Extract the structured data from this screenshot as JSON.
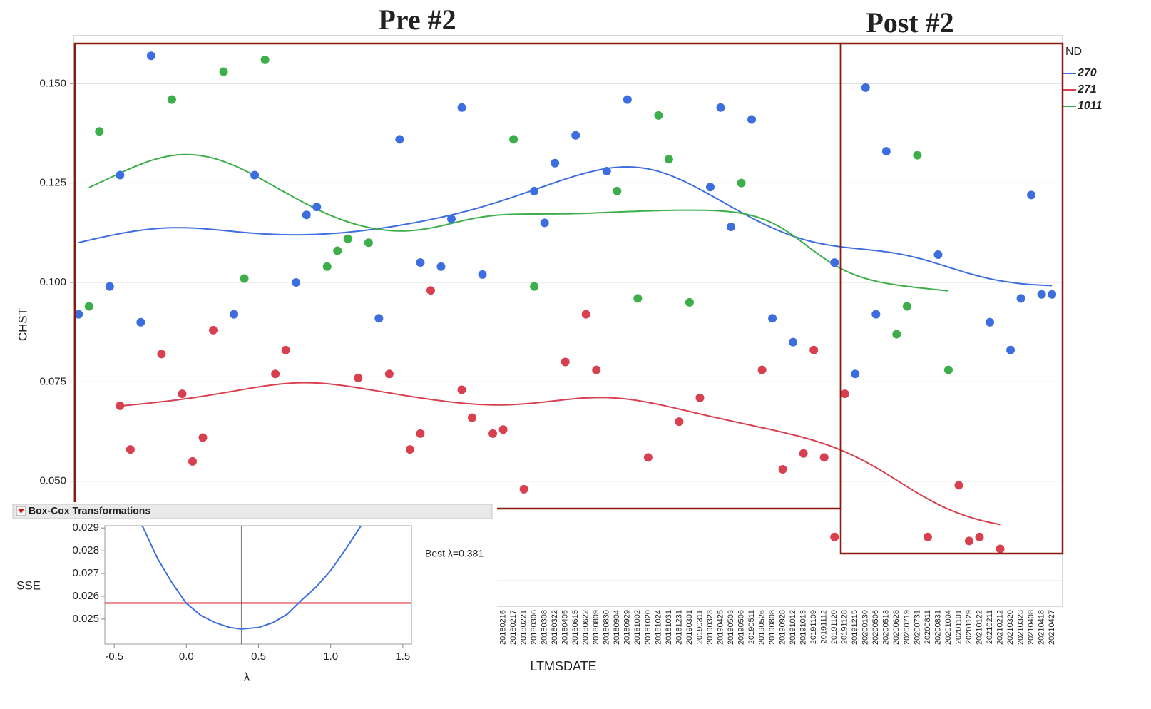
{
  "chart_data": [
    {
      "type": "scatter",
      "x_label": "LTMSDATE",
      "y_label": "CHST",
      "legend_title": "ND",
      "legend": "right",
      "grid": true,
      "smoother": true,
      "annotations": [
        "Pre #2",
        "Post #2"
      ],
      "categories": [
        null,
        null,
        null,
        null,
        null,
        null,
        null,
        null,
        null,
        null,
        null,
        null,
        null,
        null,
        null,
        null,
        null,
        null,
        null,
        null,
        null,
        null,
        null,
        null,
        null,
        null,
        null,
        null,
        null,
        null,
        null,
        null,
        null,
        null,
        null,
        null,
        null,
        null,
        null,
        null,
        null,
        "20180216",
        "20180217",
        "20180221",
        "20180306",
        "20180308",
        "20180322",
        "20180405",
        "20180615",
        "20180622",
        "20180809",
        "20180830",
        "20180904",
        "20180929",
        "20181002",
        "20181020",
        "20181024",
        "20181031",
        "20181231",
        "20190301",
        "20190311",
        "20190323",
        "20190425",
        "20190503",
        "20190506",
        "20190511",
        "20190526",
        "20190808",
        "20190928",
        "20191012",
        "20191013",
        "20191109",
        "20191112",
        "20191120",
        "20191128",
        "20191215",
        "20200130",
        "20200506",
        "20200513",
        "20200628",
        "20200719",
        "20200731",
        "20200811",
        "20200831",
        "20201004",
        "20201101",
        "20201129",
        "20210122",
        "20210211",
        "20210212",
        "20210320",
        "20210323",
        "20210408",
        "20210418",
        "20210427"
      ],
      "series": [
        {
          "name": "270",
          "color": "#3d6ee0",
          "values": [
            0.092,
            null,
            null,
            0.099,
            0.127,
            null,
            0.09,
            0.157,
            null,
            null,
            null,
            null,
            null,
            null,
            null,
            0.092,
            null,
            0.127,
            null,
            null,
            null,
            0.1,
            0.117,
            0.119,
            null,
            null,
            null,
            null,
            null,
            0.091,
            null,
            0.136,
            null,
            0.105,
            null,
            0.104,
            0.116,
            0.144,
            null,
            0.102,
            null,
            null,
            null,
            null,
            0.123,
            0.115,
            0.13,
            null,
            0.137,
            null,
            null,
            0.128,
            null,
            0.146,
            null,
            null,
            null,
            null,
            null,
            null,
            null,
            0.124,
            0.144,
            0.114,
            null,
            0.141,
            null,
            0.091,
            null,
            0.085,
            null,
            null,
            null,
            0.105,
            null,
            0.077,
            0.149,
            0.092,
            0.133,
            null,
            null,
            null,
            null,
            0.107,
            null,
            null,
            null,
            null,
            0.09,
            null,
            0.083,
            0.096,
            0.122,
            0.097,
            0.097
          ]
        },
        {
          "name": "271",
          "color": "#d8404f",
          "values": [
            null,
            null,
            null,
            null,
            0.069,
            0.058,
            null,
            null,
            0.082,
            null,
            0.072,
            0.055,
            0.061,
            0.088,
            null,
            null,
            null,
            null,
            null,
            0.077,
            0.083,
            null,
            null,
            null,
            null,
            null,
            null,
            0.076,
            null,
            null,
            0.077,
            null,
            0.058,
            0.062,
            0.098,
            null,
            null,
            0.073,
            0.066,
            null,
            0.062,
            0.063,
            null,
            0.048,
            null,
            null,
            null,
            0.08,
            null,
            0.092,
            0.078,
            null,
            null,
            null,
            null,
            0.056,
            null,
            null,
            0.065,
            null,
            0.071,
            null,
            null,
            null,
            null,
            null,
            0.078,
            null,
            0.053,
            null,
            0.057,
            0.083,
            0.056,
            0.036,
            0.072,
            null,
            null,
            null,
            null,
            null,
            null,
            null,
            0.036,
            null,
            null,
            0.049,
            0.035,
            0.036,
            null,
            0.033,
            null,
            null,
            null,
            null,
            null
          ]
        },
        {
          "name": "1011",
          "color": "#3cae4a",
          "values": [
            null,
            0.094,
            0.138,
            null,
            null,
            null,
            null,
            null,
            null,
            0.146,
            null,
            null,
            null,
            null,
            0.153,
            null,
            0.101,
            null,
            0.156,
            null,
            null,
            null,
            null,
            null,
            0.104,
            0.108,
            0.111,
            null,
            0.11,
            null,
            null,
            null,
            null,
            null,
            null,
            null,
            null,
            null,
            null,
            null,
            null,
            null,
            0.136,
            null,
            0.099,
            null,
            null,
            null,
            null,
            null,
            null,
            null,
            0.123,
            null,
            0.096,
            null,
            0.142,
            0.131,
            null,
            0.095,
            null,
            null,
            null,
            null,
            0.125,
            null,
            null,
            null,
            null,
            null,
            null,
            null,
            null,
            null,
            null,
            null,
            null,
            null,
            null,
            0.087,
            0.094,
            0.132,
            null,
            null,
            0.078,
            null,
            null,
            null,
            null,
            null,
            null,
            null,
            null,
            null,
            null
          ]
        }
      ],
      "ylim": [
        0.02,
        0.161
      ],
      "yticks": [
        0.025,
        {
          "value": 0.05,
          "label": "0.050"
        },
        0.075,
        {
          "value": 0.1,
          "label": "0.100"
        },
        0.125,
        {
          "value": 0.15,
          "label": "0.150"
        }
      ]
    },
    {
      "type": "line",
      "title": "Box-Cox Transformations",
      "x_label": "λ",
      "y_label": "SSE",
      "annotation": "Best λ=0.381",
      "best_lambda": 0.381,
      "threshold": 0.0257,
      "color": "#3d6ee0",
      "threshold_color": "#e0202a",
      "x": [
        -0.35,
        -0.3,
        -0.2,
        -0.1,
        0,
        0.1,
        0.2,
        0.3,
        0.381,
        0.5,
        0.6,
        0.7,
        0.8,
        0.9,
        1.0,
        1.1,
        1.2,
        1.25
      ],
      "values": [
        0.0294,
        0.02903,
        0.02766,
        0.02659,
        0.02569,
        0.02516,
        0.02484,
        0.02463,
        0.02456,
        0.02463,
        0.02484,
        0.02522,
        0.02584,
        0.02641,
        0.02713,
        0.02803,
        0.029,
        0.0295
      ],
      "xlim": [
        -0.565,
        1.56
      ],
      "ylim": [
        0.0239,
        0.0291
      ],
      "xticks": [
        -0.5,
        {
          "value": 0,
          "label": "0.0"
        },
        0.5,
        {
          "value": 1,
          "label": "1.0"
        },
        1.5
      ],
      "yticks": [
        0.025,
        0.026,
        0.027,
        0.028,
        0.029
      ]
    }
  ]
}
